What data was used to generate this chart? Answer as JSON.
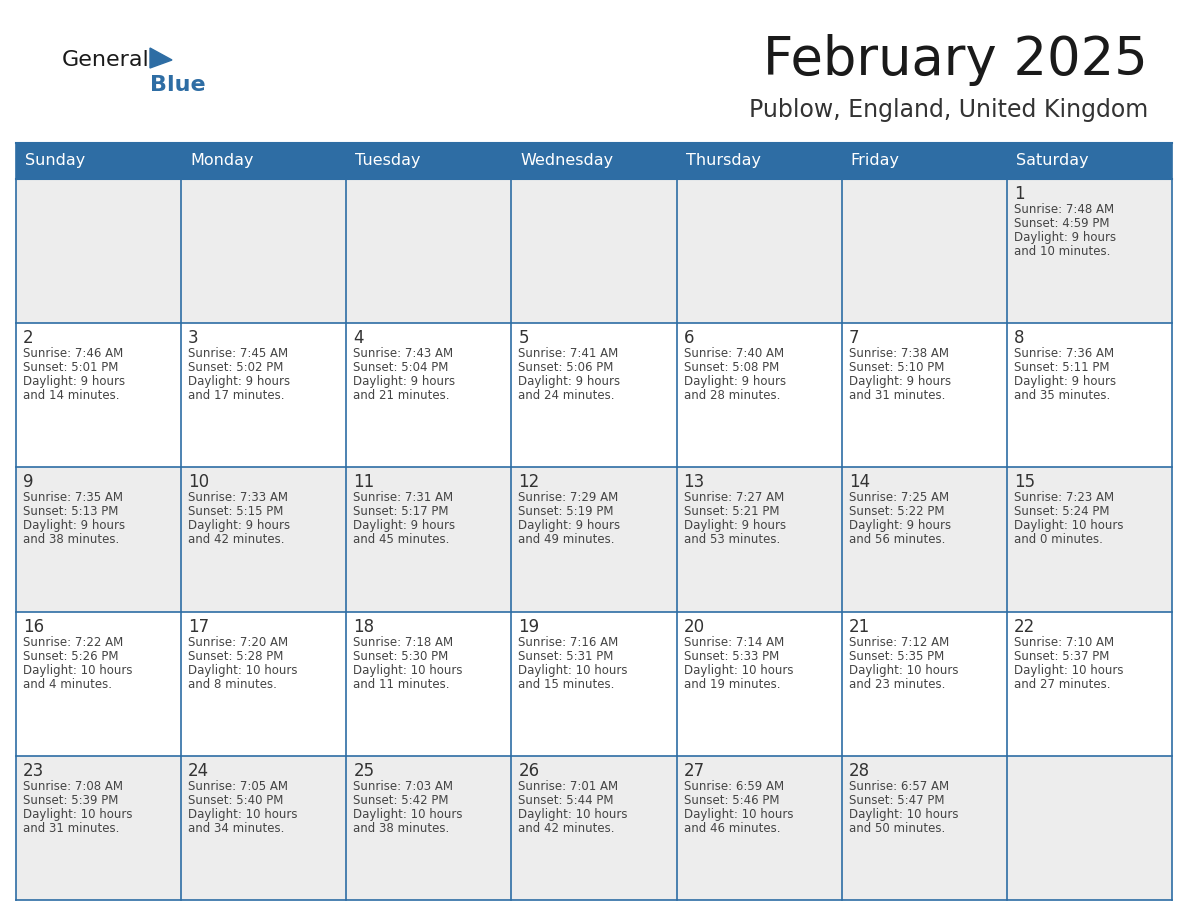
{
  "title": "February 2025",
  "subtitle": "Publow, England, United Kingdom",
  "days_of_week": [
    "Sunday",
    "Monday",
    "Tuesday",
    "Wednesday",
    "Thursday",
    "Friday",
    "Saturday"
  ],
  "header_bg": "#2E6DA4",
  "header_text": "#FFFFFF",
  "cell_bg_light": "#EDEDED",
  "cell_bg_white": "#FFFFFF",
  "border_color": "#2E6DA4",
  "day_number_color": "#333333",
  "info_text_color": "#444444",
  "title_color": "#1a1a1a",
  "subtitle_color": "#333333",
  "logo_general_color": "#1a1a1a",
  "logo_blue_color": "#2E6DA4",
  "calendar": [
    [
      null,
      null,
      null,
      null,
      null,
      null,
      {
        "day": 1,
        "sunrise": "7:48 AM",
        "sunset": "4:59 PM",
        "daylight": "9 hours and 10 minutes."
      }
    ],
    [
      {
        "day": 2,
        "sunrise": "7:46 AM",
        "sunset": "5:01 PM",
        "daylight": "9 hours and 14 minutes."
      },
      {
        "day": 3,
        "sunrise": "7:45 AM",
        "sunset": "5:02 PM",
        "daylight": "9 hours and 17 minutes."
      },
      {
        "day": 4,
        "sunrise": "7:43 AM",
        "sunset": "5:04 PM",
        "daylight": "9 hours and 21 minutes."
      },
      {
        "day": 5,
        "sunrise": "7:41 AM",
        "sunset": "5:06 PM",
        "daylight": "9 hours and 24 minutes."
      },
      {
        "day": 6,
        "sunrise": "7:40 AM",
        "sunset": "5:08 PM",
        "daylight": "9 hours and 28 minutes."
      },
      {
        "day": 7,
        "sunrise": "7:38 AM",
        "sunset": "5:10 PM",
        "daylight": "9 hours and 31 minutes."
      },
      {
        "day": 8,
        "sunrise": "7:36 AM",
        "sunset": "5:11 PM",
        "daylight": "9 hours and 35 minutes."
      }
    ],
    [
      {
        "day": 9,
        "sunrise": "7:35 AM",
        "sunset": "5:13 PM",
        "daylight": "9 hours and 38 minutes."
      },
      {
        "day": 10,
        "sunrise": "7:33 AM",
        "sunset": "5:15 PM",
        "daylight": "9 hours and 42 minutes."
      },
      {
        "day": 11,
        "sunrise": "7:31 AM",
        "sunset": "5:17 PM",
        "daylight": "9 hours and 45 minutes."
      },
      {
        "day": 12,
        "sunrise": "7:29 AM",
        "sunset": "5:19 PM",
        "daylight": "9 hours and 49 minutes."
      },
      {
        "day": 13,
        "sunrise": "7:27 AM",
        "sunset": "5:21 PM",
        "daylight": "9 hours and 53 minutes."
      },
      {
        "day": 14,
        "sunrise": "7:25 AM",
        "sunset": "5:22 PM",
        "daylight": "9 hours and 56 minutes."
      },
      {
        "day": 15,
        "sunrise": "7:23 AM",
        "sunset": "5:24 PM",
        "daylight": "10 hours and 0 minutes."
      }
    ],
    [
      {
        "day": 16,
        "sunrise": "7:22 AM",
        "sunset": "5:26 PM",
        "daylight": "10 hours and 4 minutes."
      },
      {
        "day": 17,
        "sunrise": "7:20 AM",
        "sunset": "5:28 PM",
        "daylight": "10 hours and 8 minutes."
      },
      {
        "day": 18,
        "sunrise": "7:18 AM",
        "sunset": "5:30 PM",
        "daylight": "10 hours and 11 minutes."
      },
      {
        "day": 19,
        "sunrise": "7:16 AM",
        "sunset": "5:31 PM",
        "daylight": "10 hours and 15 minutes."
      },
      {
        "day": 20,
        "sunrise": "7:14 AM",
        "sunset": "5:33 PM",
        "daylight": "10 hours and 19 minutes."
      },
      {
        "day": 21,
        "sunrise": "7:12 AM",
        "sunset": "5:35 PM",
        "daylight": "10 hours and 23 minutes."
      },
      {
        "day": 22,
        "sunrise": "7:10 AM",
        "sunset": "5:37 PM",
        "daylight": "10 hours and 27 minutes."
      }
    ],
    [
      {
        "day": 23,
        "sunrise": "7:08 AM",
        "sunset": "5:39 PM",
        "daylight": "10 hours and 31 minutes."
      },
      {
        "day": 24,
        "sunrise": "7:05 AM",
        "sunset": "5:40 PM",
        "daylight": "10 hours and 34 minutes."
      },
      {
        "day": 25,
        "sunrise": "7:03 AM",
        "sunset": "5:42 PM",
        "daylight": "10 hours and 38 minutes."
      },
      {
        "day": 26,
        "sunrise": "7:01 AM",
        "sunset": "5:44 PM",
        "daylight": "10 hours and 42 minutes."
      },
      {
        "day": 27,
        "sunrise": "6:59 AM",
        "sunset": "5:46 PM",
        "daylight": "10 hours and 46 minutes."
      },
      {
        "day": 28,
        "sunrise": "6:57 AM",
        "sunset": "5:47 PM",
        "daylight": "10 hours and 50 minutes."
      },
      null
    ]
  ],
  "row_bg_colors": [
    "#EDEDED",
    "#FFFFFF",
    "#EDEDED",
    "#FFFFFF",
    "#EDEDED"
  ]
}
